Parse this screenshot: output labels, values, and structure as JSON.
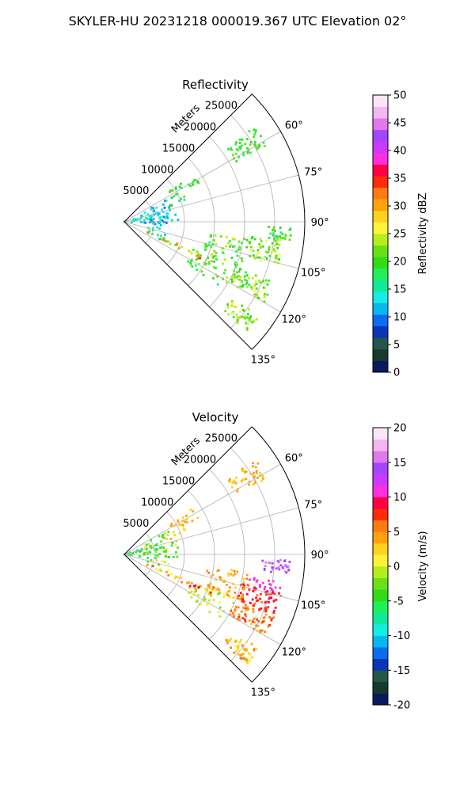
{
  "figure": {
    "suptitle": "SKYLER-HU  20231218  000019.367 UTC Elevation 02°"
  },
  "chart_data": [
    {
      "type": "scatter",
      "subtype": "polar-sector radar PPI",
      "title": "Reflectivity",
      "radial_axis_label": "Meters",
      "radial_ticks": [
        5000,
        10000,
        15000,
        20000,
        25000
      ],
      "radial_range": [
        0,
        30000
      ],
      "angular_ticks": [
        60,
        75,
        90,
        105,
        120,
        135
      ],
      "angular_range_deg": [
        45,
        135
      ],
      "grid": true,
      "colorbar": {
        "label": "Reflectivity dBZ",
        "ticks": [
          0,
          5,
          10,
          15,
          20,
          25,
          30,
          35,
          40,
          45,
          50
        ],
        "range": [
          0,
          50
        ],
        "colors": [
          "#0b1a5c",
          "#163a2e",
          "#23574a",
          "#0a35b5",
          "#0a6df0",
          "#08b8ef",
          "#13ede4",
          "#12e89a",
          "#1ff05a",
          "#33db15",
          "#6ae015",
          "#b4ee1c",
          "#fff23a",
          "#ffd21d",
          "#ffa20b",
          "#ff7a11",
          "#ff2a0a",
          "#ff0044",
          "#ff2fe0",
          "#cc3aff",
          "#a546ff",
          "#e079ec",
          "#f3b6f3",
          "#fde4fb"
        ]
      },
      "echo_regions": [
        {
          "range_m": [
            0,
            7000
          ],
          "azimuth_deg": [
            70,
            100
          ],
          "dbz": [
            10,
            16
          ],
          "density": 0.65
        },
        {
          "range_m": [
            3000,
            9000
          ],
          "azimuth_deg": [
            62,
            95
          ],
          "dbz": [
            8,
            15
          ],
          "density": 0.5
        },
        {
          "range_m": [
            7000,
            11000
          ],
          "azimuth_deg": [
            62,
            72
          ],
          "dbz": [
            14,
            22
          ],
          "density": 0.35
        },
        {
          "range_m": [
            4000,
            8000
          ],
          "azimuth_deg": [
            100,
            118
          ],
          "dbz": [
            12,
            20
          ],
          "density": 0.4
        },
        {
          "range_m": [
            9000,
            14000
          ],
          "azimuth_deg": [
            56,
            64
          ],
          "dbz": [
            15,
            21
          ],
          "density": 0.6
        },
        {
          "range_m": [
            21000,
            27000
          ],
          "azimuth_deg": [
            54,
            62
          ],
          "dbz": [
            17,
            23
          ],
          "density": 0.55
        },
        {
          "range_m": [
            21000,
            26500
          ],
          "azimuth_deg": [
            96,
            106
          ],
          "dbz": [
            18,
            26
          ],
          "density": 0.65
        },
        {
          "range_m": [
            24000,
            28000
          ],
          "azimuth_deg": [
            92,
            97
          ],
          "dbz": [
            17,
            22
          ],
          "density": 0.7
        },
        {
          "range_m": [
            20000,
            27000
          ],
          "azimuth_deg": [
            112,
            120
          ],
          "dbz": [
            18,
            26
          ],
          "density": 0.7
        },
        {
          "range_m": [
            22000,
            27500
          ],
          "azimuth_deg": [
            125,
            132
          ],
          "dbz": [
            18,
            27
          ],
          "density": 0.7
        },
        {
          "range_m": [
            14000,
            21000
          ],
          "azimuth_deg": [
            98,
            112
          ],
          "dbz": [
            17,
            25
          ],
          "density": 0.45
        },
        {
          "range_m": [
            12000,
            20000
          ],
          "azimuth_deg": [
            112,
            124
          ],
          "dbz": [
            17,
            24
          ],
          "density": 0.35
        },
        {
          "range_m": [
            4000,
            16000
          ],
          "azimuth_deg": [
            112,
            116
          ],
          "dbz": [
            16,
            36
          ],
          "density": 0.75
        }
      ]
    },
    {
      "type": "scatter",
      "subtype": "polar-sector radar PPI",
      "title": "Velocity",
      "radial_axis_label": "Meters",
      "radial_ticks": [
        5000,
        10000,
        15000,
        20000,
        25000
      ],
      "radial_range": [
        0,
        30000
      ],
      "angular_ticks": [
        60,
        75,
        90,
        105,
        120,
        135
      ],
      "angular_range_deg": [
        45,
        135
      ],
      "grid": true,
      "colorbar": {
        "label": "Velocity (m/s)",
        "ticks": [
          -20,
          -15,
          -10,
          -5,
          0,
          5,
          10,
          15,
          20
        ],
        "range": [
          -20,
          20
        ],
        "colors": [
          "#0b1a5c",
          "#163a2e",
          "#23574a",
          "#0a35b5",
          "#0a6df0",
          "#08b8ef",
          "#13ede4",
          "#12e89a",
          "#1ff05a",
          "#33db15",
          "#6ae015",
          "#b4ee1c",
          "#fff23a",
          "#ffd21d",
          "#ffa20b",
          "#ff7a11",
          "#ff2a0a",
          "#ff0044",
          "#ff2fe0",
          "#cc3aff",
          "#a546ff",
          "#e079ec",
          "#f3b6f3",
          "#fde4fb"
        ]
      },
      "echo_regions": [
        {
          "range_m": [
            0,
            7000
          ],
          "azimuth_deg": [
            70,
            100
          ],
          "velocity": [
            -7,
            -3
          ],
          "density": 0.65
        },
        {
          "range_m": [
            3000,
            9000
          ],
          "azimuth_deg": [
            62,
            95
          ],
          "velocity": [
            -6,
            1
          ],
          "density": 0.5
        },
        {
          "range_m": [
            7000,
            11000
          ],
          "azimuth_deg": [
            62,
            72
          ],
          "velocity": [
            1,
            4
          ],
          "density": 0.35
        },
        {
          "range_m": [
            4000,
            8000
          ],
          "azimuth_deg": [
            100,
            118
          ],
          "velocity": [
            -4,
            2
          ],
          "density": 0.4
        },
        {
          "range_m": [
            9000,
            14000
          ],
          "azimuth_deg": [
            56,
            64
          ],
          "velocity": [
            2,
            5
          ],
          "density": 0.6
        },
        {
          "range_m": [
            21000,
            27000
          ],
          "azimuth_deg": [
            54,
            62
          ],
          "velocity": [
            2,
            5
          ],
          "density": 0.55
        },
        {
          "range_m": [
            23000,
            28000
          ],
          "azimuth_deg": [
            92,
            97
          ],
          "velocity": [
            14,
            16
          ],
          "density": 0.7
        },
        {
          "range_m": [
            21000,
            26500
          ],
          "azimuth_deg": [
            100,
            104
          ],
          "velocity": [
            11,
            12
          ],
          "density": 0.55
        },
        {
          "range_m": [
            20000,
            27000
          ],
          "azimuth_deg": [
            104,
            112
          ],
          "velocity": [
            6,
            10
          ],
          "density": 0.7
        },
        {
          "range_m": [
            20000,
            27000
          ],
          "azimuth_deg": [
            112,
            120
          ],
          "velocity": [
            3,
            8
          ],
          "density": 0.7
        },
        {
          "range_m": [
            22000,
            27500
          ],
          "azimuth_deg": [
            125,
            132
          ],
          "velocity": [
            1,
            6
          ],
          "density": 0.7
        },
        {
          "range_m": [
            14000,
            21000
          ],
          "azimuth_deg": [
            98,
            112
          ],
          "velocity": [
            2,
            6
          ],
          "density": 0.45
        },
        {
          "range_m": [
            12000,
            20000
          ],
          "azimuth_deg": [
            112,
            124
          ],
          "velocity": [
            -3,
            3
          ],
          "density": 0.35
        },
        {
          "range_m": [
            4000,
            16000
          ],
          "azimuth_deg": [
            112,
            116
          ],
          "velocity": [
            0,
            10
          ],
          "density": 0.75
        }
      ]
    }
  ]
}
